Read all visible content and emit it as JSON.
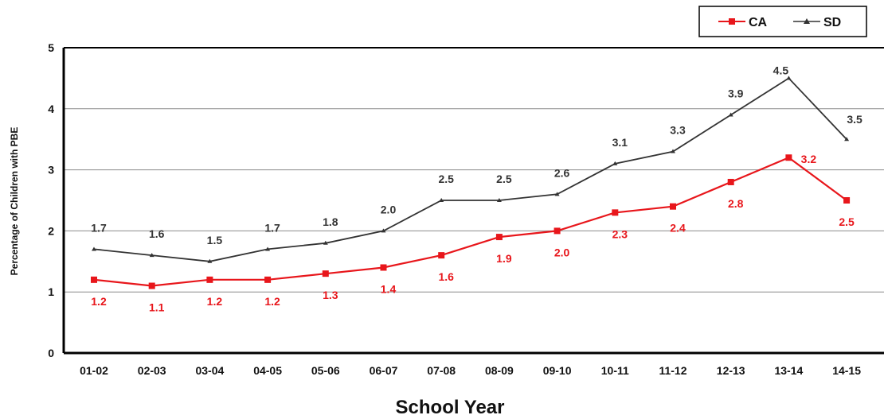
{
  "chart_data": {
    "type": "line",
    "title": "",
    "xlabel": "School Year",
    "ylabel": "Percentage of Children with PBE",
    "ylim": [
      0,
      5
    ],
    "yticks": [
      "0",
      "1",
      "2",
      "3",
      "4",
      "5"
    ],
    "grid": true,
    "legend_position": "top-right",
    "categories": [
      "01-02",
      "02-03",
      "03-04",
      "04-05",
      "05-06",
      "06-07",
      "07-08",
      "08-09",
      "09-10",
      "10-11",
      "11-12",
      "12-13",
      "13-14",
      "14-15"
    ],
    "series": [
      {
        "name": "CA",
        "color": "#e8161b",
        "marker": "square",
        "values": [
          1.2,
          1.1,
          1.2,
          1.2,
          1.3,
          1.4,
          1.6,
          1.9,
          2.0,
          2.3,
          2.4,
          2.8,
          3.2,
          2.5
        ],
        "labels": [
          "1.2",
          "1.1",
          "1.2",
          "1.2",
          "1.3",
          "1.4",
          "1.6",
          "1.9",
          "2.0",
          "2.3",
          "2.4",
          "2.8",
          "3.2",
          "2.5"
        ]
      },
      {
        "name": "SD",
        "color": "#333333",
        "marker": "triangle",
        "values": [
          1.7,
          1.6,
          1.5,
          1.7,
          1.8,
          2.0,
          2.5,
          2.5,
          2.6,
          3.1,
          3.3,
          3.9,
          4.5,
          3.5
        ],
        "labels": [
          "1.7",
          "1.6",
          "1.5",
          "1.7",
          "1.8",
          "2.0",
          "2.5",
          "2.5",
          "2.6",
          "3.1",
          "3.3",
          "3.9",
          "4.5",
          "3.5"
        ]
      }
    ]
  }
}
